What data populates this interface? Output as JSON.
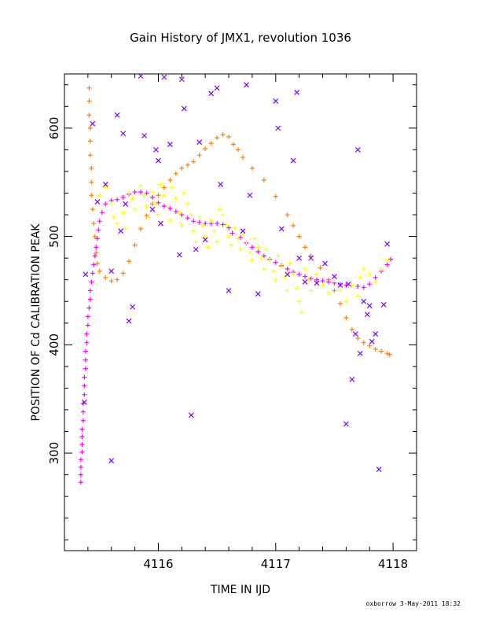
{
  "chart_data": {
    "type": "scatter",
    "title": "Gain History of JMX1, revolution 1036",
    "xlabel": "TIME IN IJD",
    "ylabel": "POSITION OF Cd CALIBRATION PEAK",
    "xlim": [
      4115.2,
      4118.2
    ],
    "ylim": [
      210,
      650
    ],
    "x_ticks": [
      4116,
      4117,
      4118
    ],
    "y_ticks": [
      300,
      400,
      500,
      600
    ],
    "x_minor_step": 0.2,
    "y_minor_step": 20,
    "grid": false,
    "footer": "oxborrow  3-May-2011 18:32",
    "series": [
      {
        "color": "#FF8000",
        "marker": "plus",
        "points": [
          [
            4115.41,
            637
          ],
          [
            4115.41,
            625
          ],
          [
            4115.41,
            612
          ],
          [
            4115.42,
            600
          ],
          [
            4115.42,
            588
          ],
          [
            4115.42,
            575
          ],
          [
            4115.43,
            563
          ],
          [
            4115.43,
            550
          ],
          [
            4115.43,
            538
          ],
          [
            4115.44,
            525
          ],
          [
            4115.45,
            512
          ],
          [
            4115.46,
            500
          ],
          [
            4115.47,
            485
          ],
          [
            4115.48,
            475
          ],
          [
            4115.5,
            468
          ],
          [
            4115.55,
            462
          ],
          [
            4115.6,
            459
          ],
          [
            4115.65,
            460
          ],
          [
            4115.7,
            466
          ],
          [
            4115.75,
            477
          ],
          [
            4115.8,
            492
          ],
          [
            4115.85,
            507
          ],
          [
            4115.9,
            519
          ],
          [
            4115.95,
            530
          ],
          [
            4116.0,
            538
          ],
          [
            4116.05,
            545
          ],
          [
            4116.1,
            552
          ],
          [
            4116.15,
            558
          ],
          [
            4116.2,
            563
          ],
          [
            4116.25,
            566
          ],
          [
            4116.3,
            569
          ],
          [
            4116.35,
            575
          ],
          [
            4116.4,
            581
          ],
          [
            4116.45,
            586
          ],
          [
            4116.5,
            591
          ],
          [
            4116.55,
            594
          ],
          [
            4116.6,
            592
          ],
          [
            4116.64,
            585
          ],
          [
            4116.68,
            580
          ],
          [
            4116.72,
            573
          ],
          [
            4116.8,
            563
          ],
          [
            4116.9,
            552
          ],
          [
            4117.0,
            537
          ],
          [
            4117.1,
            520
          ],
          [
            4117.15,
            510
          ],
          [
            4117.2,
            500
          ],
          [
            4117.25,
            490
          ],
          [
            4117.3,
            482
          ],
          [
            4117.38,
            471
          ],
          [
            4117.45,
            460
          ],
          [
            4117.5,
            450
          ],
          [
            4117.55,
            438
          ],
          [
            4117.6,
            425
          ],
          [
            4117.65,
            414
          ],
          [
            4117.7,
            406
          ],
          [
            4117.75,
            402
          ],
          [
            4117.8,
            399
          ],
          [
            4117.85,
            396
          ],
          [
            4117.9,
            394
          ],
          [
            4117.95,
            392
          ],
          [
            4117.97,
            391
          ]
        ]
      },
      {
        "color": "#FF00FF",
        "marker": "plus",
        "points": [
          [
            4115.34,
            273
          ],
          [
            4115.34,
            280
          ],
          [
            4115.34,
            287
          ],
          [
            4115.34,
            294
          ],
          [
            4115.35,
            301
          ],
          [
            4115.35,
            308
          ],
          [
            4115.35,
            315
          ],
          [
            4115.35,
            322
          ],
          [
            4115.36,
            330
          ],
          [
            4115.36,
            338
          ],
          [
            4115.36,
            346
          ],
          [
            4115.37,
            354
          ],
          [
            4115.37,
            362
          ],
          [
            4115.37,
            370
          ],
          [
            4115.38,
            378
          ],
          [
            4115.38,
            386
          ],
          [
            4115.38,
            394
          ],
          [
            4115.39,
            402
          ],
          [
            4115.39,
            410
          ],
          [
            4115.4,
            418
          ],
          [
            4115.4,
            426
          ],
          [
            4115.41,
            434
          ],
          [
            4115.42,
            442
          ],
          [
            4115.42,
            450
          ],
          [
            4115.43,
            458
          ],
          [
            4115.44,
            466
          ],
          [
            4115.45,
            474
          ],
          [
            4115.46,
            482
          ],
          [
            4115.47,
            490
          ],
          [
            4115.48,
            498
          ],
          [
            4115.49,
            506
          ],
          [
            4115.5,
            514
          ],
          [
            4115.52,
            522
          ],
          [
            4115.55,
            530
          ],
          [
            4115.6,
            533
          ],
          [
            4115.65,
            534
          ],
          [
            4115.7,
            536
          ],
          [
            4115.75,
            539
          ],
          [
            4115.8,
            541
          ],
          [
            4115.85,
            541
          ],
          [
            4115.9,
            540
          ],
          [
            4115.95,
            536
          ],
          [
            4116.0,
            531
          ],
          [
            4116.05,
            528
          ],
          [
            4116.1,
            526
          ],
          [
            4116.15,
            523
          ],
          [
            4116.2,
            520
          ],
          [
            4116.25,
            517
          ],
          [
            4116.3,
            514
          ],
          [
            4116.35,
            513
          ],
          [
            4116.4,
            512
          ],
          [
            4116.45,
            512
          ],
          [
            4116.5,
            512
          ],
          [
            4116.55,
            511
          ],
          [
            4116.6,
            508
          ],
          [
            4116.63,
            503
          ],
          [
            4116.7,
            499
          ],
          [
            4116.75,
            494
          ],
          [
            4116.8,
            490
          ],
          [
            4116.85,
            486
          ],
          [
            4116.9,
            482
          ],
          [
            4116.95,
            479
          ],
          [
            4117.0,
            476
          ],
          [
            4117.05,
            473
          ],
          [
            4117.1,
            470
          ],
          [
            4117.15,
            467
          ],
          [
            4117.2,
            465
          ],
          [
            4117.25,
            463
          ],
          [
            4117.3,
            461
          ],
          [
            4117.35,
            460
          ],
          [
            4117.4,
            459
          ],
          [
            4117.45,
            458
          ],
          [
            4117.5,
            457
          ],
          [
            4117.55,
            456
          ],
          [
            4117.6,
            455
          ],
          [
            4117.65,
            455
          ],
          [
            4117.7,
            454
          ],
          [
            4117.75,
            453
          ],
          [
            4117.8,
            456
          ],
          [
            4117.85,
            462
          ],
          [
            4117.9,
            468
          ],
          [
            4117.95,
            474
          ],
          [
            4117.98,
            479
          ]
        ]
      },
      {
        "color": "#FFFF00",
        "marker": "plus",
        "points": [
          [
            4115.5,
            538
          ],
          [
            4115.55,
            545
          ],
          [
            4115.6,
            530
          ],
          [
            4115.62,
            518
          ],
          [
            4115.65,
            512
          ],
          [
            4115.7,
            522
          ],
          [
            4115.72,
            507
          ],
          [
            4115.75,
            540
          ],
          [
            4115.78,
            535
          ],
          [
            4115.8,
            525
          ],
          [
            4115.85,
            547
          ],
          [
            4115.88,
            538
          ],
          [
            4115.9,
            528
          ],
          [
            4115.92,
            518
          ],
          [
            4115.95,
            541
          ],
          [
            4115.98,
            530
          ],
          [
            4116.0,
            520
          ],
          [
            4116.02,
            548
          ],
          [
            4116.05,
            538
          ],
          [
            4116.08,
            527
          ],
          [
            4116.1,
            515
          ],
          [
            4116.12,
            545
          ],
          [
            4116.15,
            535
          ],
          [
            4116.18,
            522
          ],
          [
            4116.2,
            510
          ],
          [
            4116.22,
            540
          ],
          [
            4116.25,
            530
          ],
          [
            4116.28,
            520
          ],
          [
            4116.3,
            505
          ],
          [
            4116.32,
            495
          ],
          [
            4116.35,
            518
          ],
          [
            4116.38,
            510
          ],
          [
            4116.4,
            500
          ],
          [
            4116.42,
            490
          ],
          [
            4116.45,
            515
          ],
          [
            4116.48,
            505
          ],
          [
            4116.5,
            495
          ],
          [
            4116.52,
            525
          ],
          [
            4116.55,
            520
          ],
          [
            4116.58,
            510
          ],
          [
            4116.6,
            500
          ],
          [
            4116.62,
            492
          ],
          [
            4116.65,
            508
          ],
          [
            4116.68,
            498
          ],
          [
            4116.7,
            488
          ],
          [
            4116.72,
            502
          ],
          [
            4116.75,
            495
          ],
          [
            4116.78,
            485
          ],
          [
            4116.8,
            478
          ],
          [
            4116.82,
            498
          ],
          [
            4116.85,
            490
          ],
          [
            4116.88,
            480
          ],
          [
            4116.9,
            470
          ],
          [
            4116.92,
            488
          ],
          [
            4116.95,
            478
          ],
          [
            4116.98,
            468
          ],
          [
            4117.0,
            460
          ],
          [
            4117.02,
            482
          ],
          [
            4117.05,
            472
          ],
          [
            4117.08,
            462
          ],
          [
            4117.1,
            450
          ],
          [
            4117.12,
            475
          ],
          [
            4117.15,
            465
          ],
          [
            4117.18,
            452
          ],
          [
            4117.2,
            440
          ],
          [
            4117.22,
            430
          ],
          [
            4117.25,
            470
          ],
          [
            4117.28,
            460
          ],
          [
            4117.3,
            450
          ],
          [
            4117.35,
            465
          ],
          [
            4117.4,
            455
          ],
          [
            4117.45,
            448
          ],
          [
            4117.5,
            460
          ],
          [
            4117.55,
            450
          ],
          [
            4117.6,
            440
          ],
          [
            4117.65,
            455
          ],
          [
            4117.7,
            445
          ],
          [
            4117.72,
            462
          ],
          [
            4117.75,
            470
          ],
          [
            4117.8,
            465
          ],
          [
            4117.85,
            458
          ],
          [
            4117.9,
            470
          ],
          [
            4117.95,
            478
          ]
        ]
      },
      {
        "color": "#8000FF",
        "marker": "x",
        "points": [
          [
            4115.48,
            532
          ],
          [
            4115.55,
            548
          ],
          [
            4115.6,
            293
          ],
          [
            4115.6,
            468
          ],
          [
            4115.65,
            612
          ],
          [
            4115.68,
            505
          ],
          [
            4115.7,
            595
          ],
          [
            4115.72,
            530
          ],
          [
            4115.75,
            422
          ],
          [
            4115.78,
            435
          ],
          [
            4115.85,
            648
          ],
          [
            4115.88,
            593
          ],
          [
            4115.95,
            525
          ],
          [
            4115.98,
            580
          ],
          [
            4116.0,
            570
          ],
          [
            4116.02,
            512
          ],
          [
            4116.05,
            647
          ],
          [
            4116.1,
            585
          ],
          [
            4116.18,
            483
          ],
          [
            4116.2,
            645
          ],
          [
            4116.22,
            618
          ],
          [
            4116.28,
            335
          ],
          [
            4116.32,
            488
          ],
          [
            4116.35,
            587
          ],
          [
            4116.4,
            497
          ],
          [
            4116.45,
            632
          ],
          [
            4116.5,
            637
          ],
          [
            4116.53,
            548
          ],
          [
            4116.6,
            450
          ],
          [
            4116.72,
            505
          ],
          [
            4116.75,
            640
          ],
          [
            4116.78,
            538
          ],
          [
            4116.85,
            447
          ],
          [
            4117.0,
            625
          ],
          [
            4117.02,
            600
          ],
          [
            4117.05,
            507
          ],
          [
            4117.1,
            465
          ],
          [
            4117.15,
            570
          ],
          [
            4117.18,
            633
          ],
          [
            4117.2,
            480
          ],
          [
            4117.25,
            458
          ],
          [
            4117.3,
            480
          ],
          [
            4117.35,
            457
          ],
          [
            4117.42,
            475
          ],
          [
            4117.5,
            463
          ],
          [
            4117.55,
            455
          ],
          [
            4117.6,
            327
          ],
          [
            4117.62,
            456
          ],
          [
            4117.65,
            368
          ],
          [
            4117.68,
            410
          ],
          [
            4117.7,
            580
          ],
          [
            4117.72,
            392
          ],
          [
            4117.75,
            440
          ],
          [
            4117.78,
            428
          ],
          [
            4117.8,
            436
          ],
          [
            4117.82,
            403
          ],
          [
            4117.85,
            410
          ],
          [
            4117.88,
            285
          ],
          [
            4117.92,
            437
          ],
          [
            4117.95,
            493
          ],
          [
            4115.37,
            347
          ],
          [
            4115.44,
            604
          ],
          [
            4115.38,
            465
          ]
        ]
      }
    ]
  }
}
